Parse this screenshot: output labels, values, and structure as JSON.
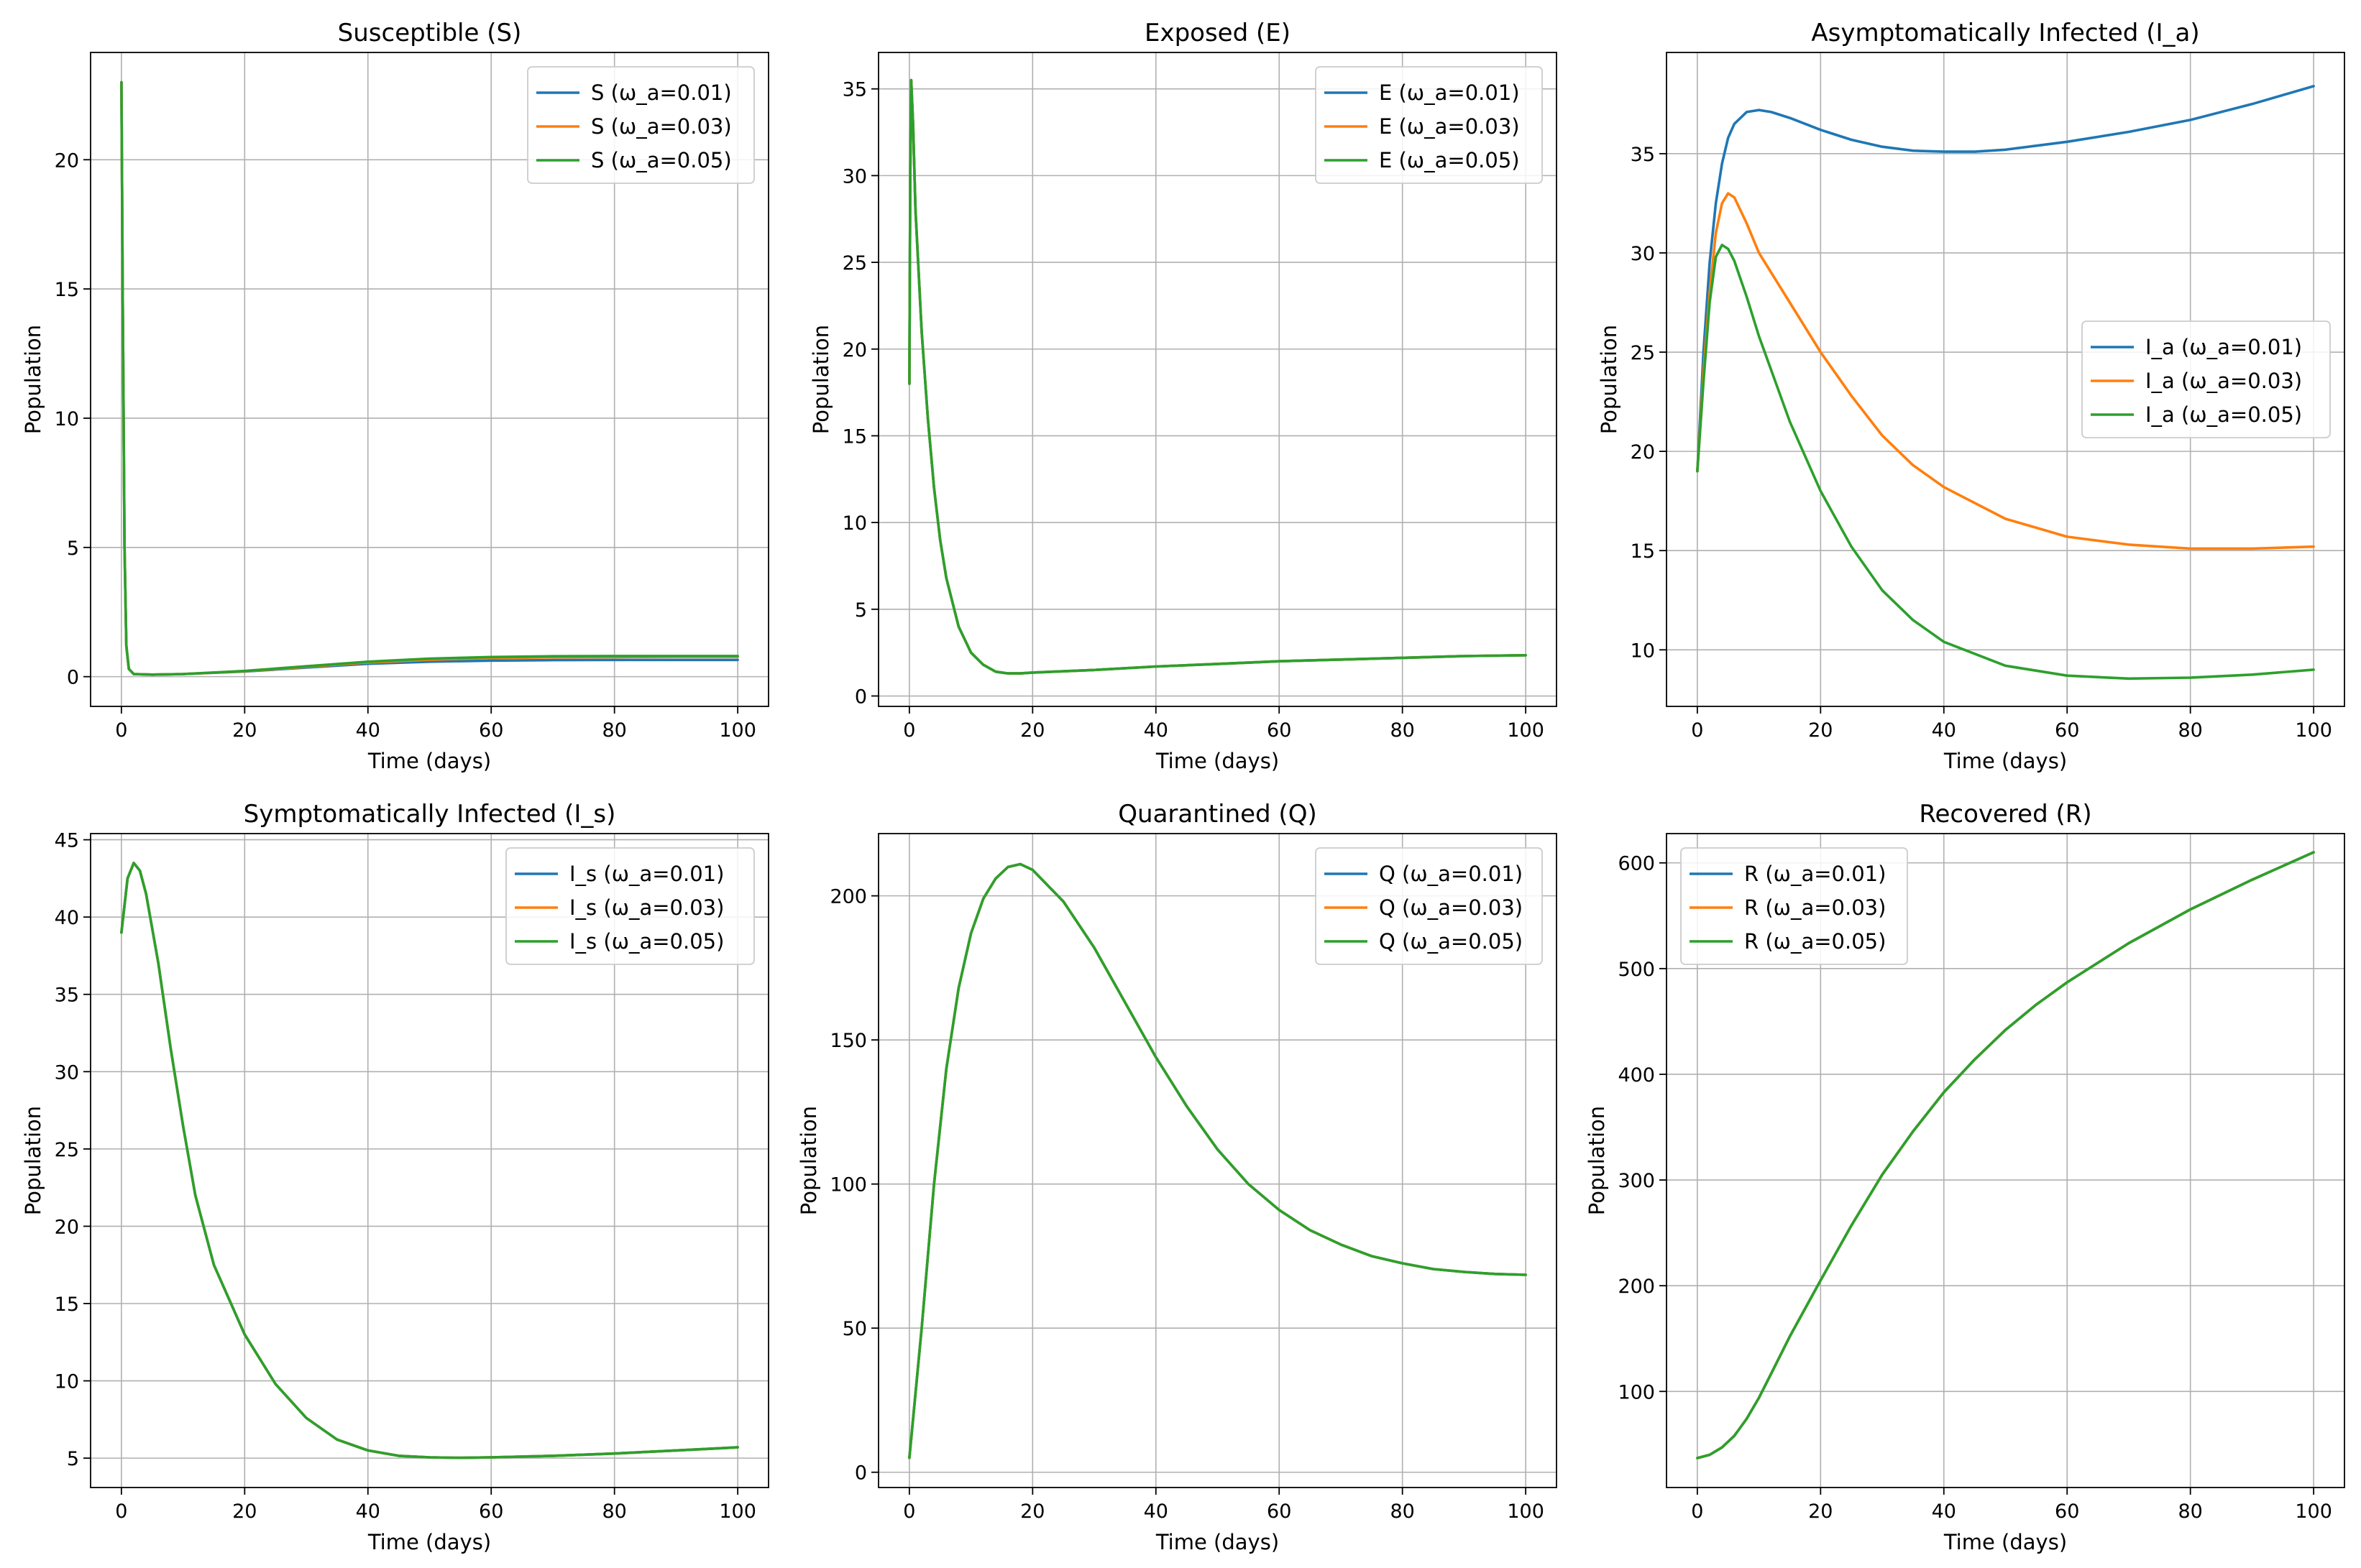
{
  "colors": {
    "series": [
      "#1f77b4",
      "#ff7f0e",
      "#2ca02c"
    ],
    "grid": "#b0b0b0",
    "axes": "#000000",
    "legend_border": "#cccccc"
  },
  "chart_data": [
    {
      "type": "line",
      "title": "Susceptible (S)",
      "xlabel": "Time (days)",
      "ylabel": "Population",
      "xlim": [
        -5,
        105
      ],
      "ylim": [
        -1.15,
        24.15
      ],
      "xticks": [
        0,
        20,
        40,
        60,
        80,
        100
      ],
      "yticks": [
        0,
        5,
        10,
        15,
        20
      ],
      "grid": true,
      "legend": "upper right",
      "series": [
        {
          "name": "S (ω_a=0.01)",
          "x": [
            0,
            0.2,
            0.5,
            0.8,
            1.2,
            2,
            5,
            10,
            20,
            30,
            40,
            50,
            60,
            70,
            80,
            90,
            100
          ],
          "y": [
            23,
            15,
            5,
            1.2,
            0.3,
            0.1,
            0.08,
            0.1,
            0.2,
            0.35,
            0.5,
            0.58,
            0.62,
            0.64,
            0.65,
            0.65,
            0.65
          ]
        },
        {
          "name": "S (ω_a=0.03)",
          "x": [
            0,
            0.2,
            0.5,
            0.8,
            1.2,
            2,
            5,
            10,
            20,
            30,
            40,
            50,
            60,
            70,
            80,
            90,
            100
          ],
          "y": [
            23,
            15,
            5,
            1.2,
            0.3,
            0.1,
            0.08,
            0.1,
            0.21,
            0.38,
            0.55,
            0.66,
            0.72,
            0.75,
            0.76,
            0.77,
            0.77
          ]
        },
        {
          "name": "S (ω_a=0.05)",
          "x": [
            0,
            0.2,
            0.5,
            0.8,
            1.2,
            2,
            5,
            10,
            20,
            30,
            40,
            50,
            60,
            70,
            80,
            90,
            100
          ],
          "y": [
            23,
            15,
            5,
            1.2,
            0.3,
            0.1,
            0.08,
            0.1,
            0.22,
            0.4,
            0.58,
            0.7,
            0.76,
            0.79,
            0.8,
            0.8,
            0.8
          ]
        }
      ]
    },
    {
      "type": "line",
      "title": "Exposed (E)",
      "xlabel": "Time (days)",
      "ylabel": "Population",
      "xlim": [
        -5,
        105
      ],
      "ylim": [
        -0.6,
        37.1
      ],
      "xticks": [
        0,
        20,
        40,
        60,
        80,
        100
      ],
      "yticks": [
        0,
        5,
        10,
        15,
        20,
        25,
        30,
        35
      ],
      "grid": true,
      "legend": "upper right",
      "series": [
        {
          "name": "E (ω_a=0.01)",
          "x": [
            0,
            0.15,
            0.3,
            0.6,
            1,
            2,
            3,
            4,
            5,
            6,
            8,
            10,
            12,
            14,
            16,
            18,
            20,
            30,
            40,
            50,
            60,
            70,
            80,
            90,
            100
          ],
          "y": [
            18,
            30,
            35.5,
            33,
            28,
            21,
            16,
            12,
            9,
            6.8,
            4,
            2.5,
            1.8,
            1.4,
            1.3,
            1.3,
            1.35,
            1.5,
            1.7,
            1.85,
            2,
            2.1,
            2.2,
            2.3,
            2.35
          ]
        },
        {
          "name": "E (ω_a=0.03)",
          "x": [
            0,
            0.15,
            0.3,
            0.6,
            1,
            2,
            3,
            4,
            5,
            6,
            8,
            10,
            12,
            14,
            16,
            18,
            20,
            30,
            40,
            50,
            60,
            70,
            80,
            90,
            100
          ],
          "y": [
            18,
            30,
            35.5,
            33,
            28,
            21,
            16,
            12,
            9,
            6.8,
            4,
            2.5,
            1.8,
            1.4,
            1.3,
            1.3,
            1.35,
            1.5,
            1.7,
            1.85,
            2,
            2.1,
            2.2,
            2.3,
            2.35
          ]
        },
        {
          "name": "E (ω_a=0.05)",
          "x": [
            0,
            0.15,
            0.3,
            0.6,
            1,
            2,
            3,
            4,
            5,
            6,
            8,
            10,
            12,
            14,
            16,
            18,
            20,
            30,
            40,
            50,
            60,
            70,
            80,
            90,
            100
          ],
          "y": [
            18,
            30,
            35.5,
            33,
            28,
            21,
            16,
            12,
            9,
            6.8,
            4,
            2.5,
            1.8,
            1.4,
            1.3,
            1.3,
            1.35,
            1.5,
            1.7,
            1.85,
            2,
            2.1,
            2.2,
            2.3,
            2.35
          ]
        }
      ]
    },
    {
      "type": "line",
      "title": "Asymptomatically Infected (I_a)",
      "xlabel": "Time (days)",
      "ylabel": "Population",
      "xlim": [
        -5,
        105
      ],
      "ylim": [
        7.15,
        40.1
      ],
      "xticks": [
        0,
        20,
        40,
        60,
        80,
        100
      ],
      "yticks": [
        10,
        15,
        20,
        25,
        30,
        35
      ],
      "grid": true,
      "legend": "center right",
      "series": [
        {
          "name": "I_a (ω_a=0.01)",
          "x": [
            0,
            1,
            2,
            3,
            4,
            5,
            6,
            8,
            10,
            12,
            15,
            20,
            25,
            30,
            35,
            40,
            45,
            50,
            60,
            70,
            80,
            90,
            100
          ],
          "y": [
            19,
            25,
            29.5,
            32.5,
            34.5,
            35.8,
            36.5,
            37.1,
            37.2,
            37.1,
            36.8,
            36.2,
            35.7,
            35.35,
            35.15,
            35.1,
            35.1,
            35.2,
            35.6,
            36.1,
            36.7,
            37.5,
            38.4
          ]
        },
        {
          "name": "I_a (ω_a=0.03)",
          "x": [
            0,
            1,
            2,
            3,
            4,
            5,
            6,
            8,
            10,
            15,
            20,
            25,
            30,
            35,
            40,
            50,
            60,
            70,
            80,
            90,
            100
          ],
          "y": [
            19,
            24,
            28,
            31,
            32.5,
            33,
            32.8,
            31.5,
            30,
            27.5,
            25,
            22.8,
            20.8,
            19.3,
            18.2,
            16.6,
            15.7,
            15.3,
            15.1,
            15.1,
            15.2
          ]
        },
        {
          "name": "I_a (ω_a=0.05)",
          "x": [
            0,
            1,
            2,
            3,
            4,
            5,
            6,
            8,
            10,
            15,
            20,
            25,
            30,
            35,
            40,
            50,
            60,
            70,
            80,
            90,
            100
          ],
          "y": [
            19,
            23.5,
            27.5,
            29.8,
            30.4,
            30.2,
            29.6,
            27.8,
            25.8,
            21.5,
            18,
            15.2,
            13,
            11.5,
            10.4,
            9.2,
            8.7,
            8.55,
            8.6,
            8.75,
            9
          ]
        }
      ]
    },
    {
      "type": "line",
      "title": "Symptomatically Infected (I_s)",
      "xlabel": "Time (days)",
      "ylabel": "Population",
      "xlim": [
        -5,
        105
      ],
      "ylim": [
        3.1,
        45.4
      ],
      "xticks": [
        0,
        20,
        40,
        60,
        80,
        100
      ],
      "yticks": [
        5,
        10,
        15,
        20,
        25,
        30,
        35,
        40,
        45
      ],
      "grid": true,
      "legend": "upper right",
      "series": [
        {
          "name": "I_s (ω_a=0.01)",
          "x": [
            0,
            1,
            2,
            3,
            4,
            6,
            8,
            10,
            12,
            15,
            20,
            25,
            30,
            35,
            40,
            45,
            50,
            55,
            60,
            70,
            80,
            90,
            100
          ],
          "y": [
            39,
            42.5,
            43.5,
            43,
            41.5,
            37,
            31.5,
            26.5,
            22,
            17.5,
            13,
            9.8,
            7.6,
            6.2,
            5.5,
            5.15,
            5.05,
            5.02,
            5.05,
            5.15,
            5.3,
            5.5,
            5.7
          ]
        },
        {
          "name": "I_s (ω_a=0.03)",
          "x": [
            0,
            1,
            2,
            3,
            4,
            6,
            8,
            10,
            12,
            15,
            20,
            25,
            30,
            35,
            40,
            45,
            50,
            55,
            60,
            70,
            80,
            90,
            100
          ],
          "y": [
            39,
            42.5,
            43.5,
            43,
            41.5,
            37,
            31.5,
            26.5,
            22,
            17.5,
            13,
            9.8,
            7.6,
            6.2,
            5.5,
            5.15,
            5.05,
            5.02,
            5.05,
            5.15,
            5.3,
            5.5,
            5.7
          ]
        },
        {
          "name": "I_s (ω_a=0.05)",
          "x": [
            0,
            1,
            2,
            3,
            4,
            6,
            8,
            10,
            12,
            15,
            20,
            25,
            30,
            35,
            40,
            45,
            50,
            55,
            60,
            70,
            80,
            90,
            100
          ],
          "y": [
            39,
            42.5,
            43.5,
            43,
            41.5,
            37,
            31.5,
            26.5,
            22,
            17.5,
            13,
            9.8,
            7.6,
            6.2,
            5.5,
            5.15,
            5.05,
            5.02,
            5.05,
            5.15,
            5.3,
            5.5,
            5.7
          ]
        }
      ]
    },
    {
      "type": "line",
      "title": "Quarantined (Q)",
      "xlabel": "Time (days)",
      "ylabel": "Population",
      "xlim": [
        -5,
        105
      ],
      "ylim": [
        -5.3,
        221.6
      ],
      "xticks": [
        0,
        20,
        40,
        60,
        80,
        100
      ],
      "yticks": [
        0,
        50,
        100,
        150,
        200
      ],
      "grid": true,
      "legend": "upper right",
      "series": [
        {
          "name": "Q (ω_a=0.01)",
          "x": [
            0,
            2,
            4,
            6,
            8,
            10,
            12,
            14,
            16,
            18,
            20,
            25,
            30,
            35,
            40,
            45,
            50,
            55,
            60,
            65,
            70,
            75,
            80,
            85,
            90,
            95,
            100
          ],
          "y": [
            5,
            50,
            100,
            140,
            168,
            187,
            199,
            206,
            210,
            211,
            209,
            198,
            182,
            163,
            144,
            127,
            112,
            100,
            91,
            84,
            79,
            75,
            72.5,
            70.5,
            69.5,
            68.8,
            68.5
          ]
        },
        {
          "name": "Q (ω_a=0.03)",
          "x": [
            0,
            2,
            4,
            6,
            8,
            10,
            12,
            14,
            16,
            18,
            20,
            25,
            30,
            35,
            40,
            45,
            50,
            55,
            60,
            65,
            70,
            75,
            80,
            85,
            90,
            95,
            100
          ],
          "y": [
            5,
            50,
            100,
            140,
            168,
            187,
            199,
            206,
            210,
            211,
            209,
            198,
            182,
            163,
            144,
            127,
            112,
            100,
            91,
            84,
            79,
            75,
            72.5,
            70.5,
            69.5,
            68.8,
            68.5
          ]
        },
        {
          "name": "Q (ω_a=0.05)",
          "x": [
            0,
            2,
            4,
            6,
            8,
            10,
            12,
            14,
            16,
            18,
            20,
            25,
            30,
            35,
            40,
            45,
            50,
            55,
            60,
            65,
            70,
            75,
            80,
            85,
            90,
            95,
            100
          ],
          "y": [
            5,
            50,
            100,
            140,
            168,
            187,
            199,
            206,
            210,
            211,
            209,
            198,
            182,
            163,
            144,
            127,
            112,
            100,
            91,
            84,
            79,
            75,
            72.5,
            70.5,
            69.5,
            68.8,
            68.5
          ]
        }
      ]
    },
    {
      "type": "line",
      "title": "Recovered (R)",
      "xlabel": "Time (days)",
      "ylabel": "Population",
      "xlim": [
        -5,
        105
      ],
      "ylim": [
        9.1,
        627.7
      ],
      "xticks": [
        0,
        20,
        40,
        60,
        80,
        100
      ],
      "yticks": [
        100,
        200,
        300,
        400,
        500,
        600
      ],
      "grid": true,
      "legend": "upper left",
      "series": [
        {
          "name": "R (ω_a=0.01)",
          "x": [
            0,
            2,
            4,
            6,
            8,
            10,
            12,
            15,
            20,
            25,
            30,
            35,
            40,
            45,
            50,
            55,
            60,
            70,
            80,
            90,
            100
          ],
          "y": [
            37,
            40,
            47,
            58,
            74,
            94,
            117,
            152,
            205,
            257,
            305,
            346,
            383,
            414,
            442,
            466,
            487,
            524,
            556,
            584,
            610
          ]
        },
        {
          "name": "R (ω_a=0.03)",
          "x": [
            0,
            2,
            4,
            6,
            8,
            10,
            12,
            15,
            20,
            25,
            30,
            35,
            40,
            45,
            50,
            55,
            60,
            70,
            80,
            90,
            100
          ],
          "y": [
            37,
            40,
            47,
            58,
            74,
            94,
            117,
            152,
            205,
            257,
            305,
            346,
            383,
            414,
            442,
            466,
            487,
            524,
            556,
            584,
            610
          ]
        },
        {
          "name": "R (ω_a=0.05)",
          "x": [
            0,
            2,
            4,
            6,
            8,
            10,
            12,
            15,
            20,
            25,
            30,
            35,
            40,
            45,
            50,
            55,
            60,
            70,
            80,
            90,
            100
          ],
          "y": [
            37,
            40,
            47,
            58,
            74,
            94,
            117,
            152,
            205,
            257,
            305,
            346,
            383,
            414,
            442,
            466,
            487,
            524,
            556,
            584,
            610
          ]
        }
      ]
    }
  ]
}
